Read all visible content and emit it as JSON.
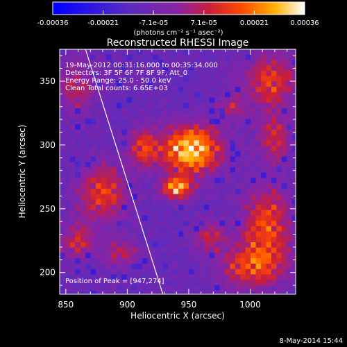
{
  "chart_data": {
    "type": "heatmap",
    "title": "Reconstructed RHESSI Image",
    "xlabel": "Heliocentric X (arcsec)",
    "ylabel": "Heliocentric Y (arcsec)",
    "xlim": [
      845,
      1037
    ],
    "ylim": [
      183,
      375
    ],
    "x_ticks": [
      850,
      900,
      950,
      1000
    ],
    "y_ticks": [
      200,
      250,
      300,
      350
    ],
    "colorbar": {
      "range": [
        -0.00036,
        0.00036
      ],
      "tick_labels": [
        "-0.00036",
        "-0.00021",
        "-7.1e-05",
        "7.1e-05",
        "0.00021",
        "0.00036"
      ],
      "units_label": "(photons cm⁻² s⁻¹ asec⁻²)"
    },
    "info_lines": [
      "19-May-2012 00:31:16.000 to 00:35:34.000",
      "Detectors: 3F 5F 6F 7F 8F 9F, Att_0",
      "Energy Range: 25.0 - 50.0 keV",
      "Clean    Total counts: 6.65E+03"
    ],
    "peak_label": "Position of Peak = [947,274]",
    "peak": [
      947,
      274
    ],
    "limb_line": [
      [
        866,
        375
      ],
      [
        929,
        183
      ]
    ],
    "footer_date": "8-May-2014 15:44",
    "sources": [
      {
        "x": 952,
        "y": 296,
        "sx": 17,
        "sy": 13,
        "amp": 1.0
      },
      {
        "x": 940,
        "y": 266,
        "sx": 9,
        "sy": 6,
        "amp": 0.8
      },
      {
        "x": 913,
        "y": 298,
        "sx": 8,
        "sy": 10,
        "amp": 0.55
      },
      {
        "x": 880,
        "y": 262,
        "sx": 14,
        "sy": 16,
        "amp": 0.55
      },
      {
        "x": 1014,
        "y": 237,
        "sx": 14,
        "sy": 22,
        "amp": 0.6
      },
      {
        "x": 1000,
        "y": 205,
        "sx": 18,
        "sy": 12,
        "amp": 0.55
      },
      {
        "x": 1016,
        "y": 350,
        "sx": 15,
        "sy": 15,
        "amp": 0.55
      },
      {
        "x": 1020,
        "y": 305,
        "sx": 10,
        "sy": 12,
        "amp": 0.45
      },
      {
        "x": 858,
        "y": 345,
        "sx": 12,
        "sy": 14,
        "amp": 0.35
      },
      {
        "x": 967,
        "y": 228,
        "sx": 10,
        "sy": 8,
        "amp": 0.4
      },
      {
        "x": 860,
        "y": 225,
        "sx": 10,
        "sy": 10,
        "amp": 0.45
      },
      {
        "x": 895,
        "y": 215,
        "sx": 10,
        "sy": 8,
        "amp": 0.35
      },
      {
        "x": 985,
        "y": 330,
        "sx": 8,
        "sy": 8,
        "amp": 0.3
      }
    ],
    "grid_on": false,
    "legend": "none"
  }
}
